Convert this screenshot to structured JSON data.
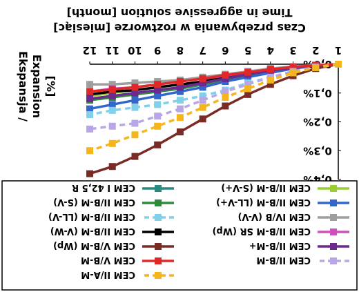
{
  "chart_data": {
    "type": "line",
    "title_lines": [
      "Time in aggressive solution [month]",
      "Czas przebywania w roztworze [miesiąc]"
    ],
    "ylabel_lines": [
      "Ekspansja /",
      "Expansion",
      "[%]"
    ],
    "categories": [
      "1",
      "2",
      "3",
      "4",
      "5",
      "6",
      "7",
      "8",
      "9",
      "10",
      "11",
      "12"
    ],
    "y_tick_labels": [
      "0,0%",
      "0,1%",
      "0,2%",
      "0,3%",
      "0,4%"
    ],
    "ylim": [
      0,
      0.4
    ],
    "y_inverted": true,
    "grid": false,
    "legend_position": "bottom",
    "series": [
      {
        "name": "CEM I 42,5 R",
        "color": "#2a8a80",
        "dash": false,
        "values": [
          0.0,
          0.005,
          0.01,
          0.02,
          0.035,
          0.05,
          0.065,
          0.08,
          0.09,
          0.1,
          0.11,
          0.12
        ]
      },
      {
        "name": "CEM II/B-M (S-V+)",
        "color": "#9acd32",
        "dash": false,
        "values": [
          0.0,
          0.005,
          0.01,
          0.02,
          0.03,
          0.045,
          0.06,
          0.07,
          0.08,
          0.09,
          0.1,
          0.11
        ]
      },
      {
        "name": "CEM II/B-M (S-V)",
        "color": "#2e8b3a",
        "dash": false,
        "values": [
          0.0,
          0.005,
          0.015,
          0.025,
          0.04,
          0.055,
          0.07,
          0.085,
          0.095,
          0.105,
          0.115,
          0.125
        ]
      },
      {
        "name": "CEM II/B-M (LL-V+)",
        "color": "#3366cc",
        "dash": false,
        "values": [
          0.0,
          0.005,
          0.015,
          0.03,
          0.045,
          0.06,
          0.08,
          0.095,
          0.11,
          0.125,
          0.14,
          0.155
        ]
      },
      {
        "name": "CEM II/B-M (LL-V)",
        "color": "#7fd0e8",
        "dash": true,
        "values": [
          0.0,
          0.01,
          0.025,
          0.045,
          0.065,
          0.09,
          0.11,
          0.125,
          0.14,
          0.15,
          0.16,
          0.175
        ]
      },
      {
        "name": "CEM IV/B (V-V)",
        "color": "#9e9e9e",
        "dash": false,
        "values": [
          0.0,
          0.003,
          0.008,
          0.015,
          0.025,
          0.035,
          0.045,
          0.055,
          0.06,
          0.065,
          0.07,
          0.07
        ]
      },
      {
        "name": "CEM II/B-M (V-W)",
        "color": "#000000",
        "dash": false,
        "values": [
          0.0,
          0.005,
          0.012,
          0.02,
          0.03,
          0.045,
          0.06,
          0.07,
          0.08,
          0.09,
          0.095,
          0.105
        ]
      },
      {
        "name": "CEM II/B-M SR (Wp)",
        "color": "#d04fbf",
        "dash": false,
        "values": [
          0.0,
          0.004,
          0.01,
          0.018,
          0.028,
          0.04,
          0.05,
          0.06,
          0.07,
          0.08,
          0.085,
          0.095
        ]
      },
      {
        "name": "CEM V/B-M (Wp)",
        "color": "#7b2b25",
        "dash": false,
        "values": [
          0.0,
          0.015,
          0.04,
          0.07,
          0.105,
          0.145,
          0.19,
          0.235,
          0.28,
          0.32,
          0.355,
          0.38
        ]
      },
      {
        "name": "CEM II/B-M+",
        "color": "#6a2a8e",
        "dash": false,
        "values": [
          0.0,
          0.005,
          0.012,
          0.022,
          0.035,
          0.05,
          0.065,
          0.08,
          0.09,
          0.1,
          0.11,
          0.12
        ]
      },
      {
        "name": "CEM V/B-M",
        "color": "#e02828",
        "dash": false,
        "values": [
          0.0,
          0.004,
          0.01,
          0.018,
          0.028,
          0.038,
          0.05,
          0.06,
          0.07,
          0.08,
          0.088,
          0.095
        ]
      },
      {
        "name": "CEM II/B-M",
        "color": "#b9a6e6",
        "dash": true,
        "values": [
          0.0,
          0.01,
          0.025,
          0.045,
          0.07,
          0.095,
          0.125,
          0.155,
          0.18,
          0.205,
          0.215,
          0.225
        ]
      },
      {
        "name": "CEM II/A-M",
        "color": "#f4b61a",
        "dash": true,
        "values": [
          0.0,
          0.012,
          0.03,
          0.055,
          0.085,
          0.115,
          0.15,
          0.185,
          0.215,
          0.245,
          0.275,
          0.3
        ]
      }
    ]
  }
}
